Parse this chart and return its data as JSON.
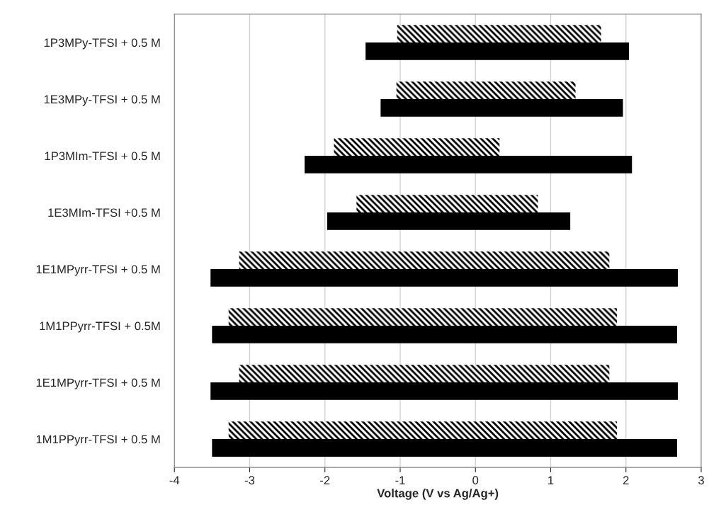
{
  "chart_data": {
    "type": "bar",
    "orientation": "horizontal",
    "xlabel": "Voltage (V vs Ag/Ag+)",
    "categories": [
      "1P3MPy-TFSI + 0.5 M",
      "1E3MPy-TFSI + 0.5 M",
      "1P3MIm-TFSI + 0.5 M",
      "1E3MIm-TFSI +0.5 M",
      "1E1MPyrr-TFSI + 0.5 M",
      "1M1PPyrr-TFSI + 0.5M",
      "1E1MPyrr-TFSI + 0.5 M",
      "1M1PPyrr-TFSI + 0.5 M"
    ],
    "series": [
      {
        "color": "#000000",
        "base": [
          -1.04,
          -1.05,
          -1.88,
          -1.58,
          -3.14,
          -3.28,
          -3.14,
          -3.28
        ],
        "values": [
          2.71,
          2.38,
          2.2,
          2.41,
          4.92,
          5.16,
          4.92,
          5.16
        ]
      },
      {
        "color": "#000000",
        "base": [
          -1.46,
          -1.26,
          -2.27,
          -1.97,
          -3.52,
          -3.5,
          -3.52,
          -3.5
        ],
        "values": [
          3.5,
          3.22,
          4.35,
          3.23,
          6.21,
          6.18,
          6.21,
          6.18
        ]
      }
    ],
    "xlim": [
      -4,
      3
    ],
    "xticks": [
      -4,
      -3,
      -2,
      -1,
      0,
      1,
      2,
      3
    ],
    "grid": "x"
  }
}
